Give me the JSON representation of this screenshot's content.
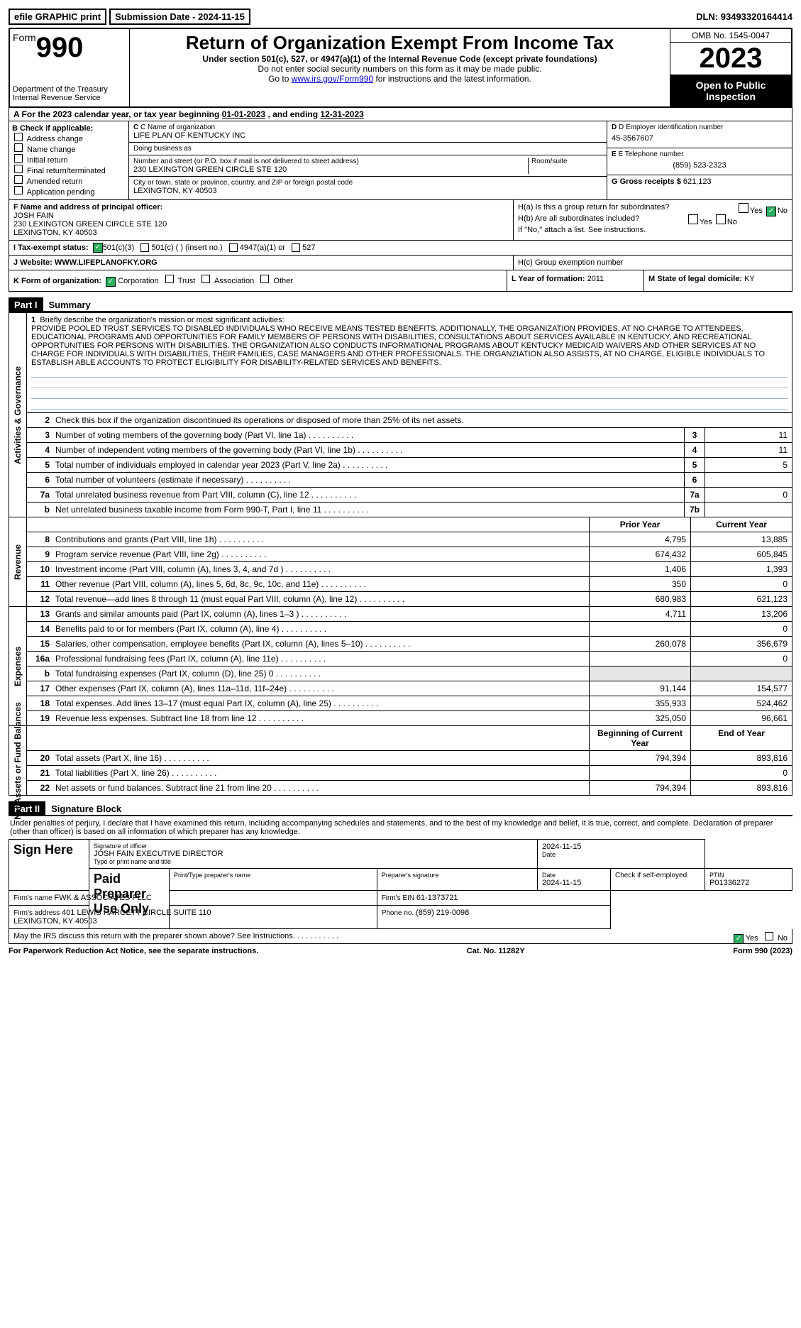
{
  "top": {
    "efile": "efile GRAPHIC print",
    "submission_label": "Submission Date - ",
    "submission_date": "2024-11-15",
    "dln_label": "DLN: ",
    "dln": "93493320164414"
  },
  "header": {
    "form_word": "Form",
    "form_number": "990",
    "dept": "Department of the Treasury\nInternal Revenue Service",
    "title": "Return of Organization Exempt From Income Tax",
    "sub1": "Under section 501(c), 527, or 4947(a)(1) of the Internal Revenue Code (except private foundations)",
    "sub2": "Do not enter social security numbers on this form as it may be made public.",
    "sub3_pre": "Go to ",
    "sub3_link": "www.irs.gov/Form990",
    "sub3_post": " for instructions and the latest information.",
    "omb": "OMB No. 1545-0047",
    "year": "2023",
    "open": "Open to Public Inspection"
  },
  "rowA": {
    "text_pre": "A For the 2023 calendar year, or tax year beginning ",
    "begin": "01-01-2023",
    "mid": "     , and ending ",
    "end": "12-31-2023"
  },
  "colB": {
    "head": "B Check if applicable:",
    "items": [
      "Address change",
      "Name change",
      "Initial return",
      "Final return/terminated",
      "Amended return",
      "Application pending"
    ]
  },
  "colC": {
    "c_label": "C Name of organization",
    "org": "LIFE PLAN OF KENTUCKY INC",
    "dba_label": "Doing business as",
    "dba": "",
    "street_label": "Number and street (or P.O. box if mail is not delivered to street address)",
    "street": "230 LEXINGTON GREEN CIRCLE STE 120",
    "room_label": "Room/suite",
    "city_label": "City or town, state or province, country, and ZIP or foreign postal code",
    "city": "LEXINGTON, KY  40503"
  },
  "colD": {
    "d_label": "D Employer identification number",
    "ein": "45-3567607",
    "e_label": "E Telephone number",
    "phone": "(859) 523-2323",
    "g_label": "G Gross receipts $ ",
    "gross": "621,123"
  },
  "rowF": {
    "label": "F  Name and address of principal officer:",
    "name": "JOSH FAIN",
    "addr1": "230 LEXINGTON GREEN CIRCLE STE 120",
    "addr2": "LEXINGTON, KY  40503"
  },
  "rowH": {
    "ha": "H(a)  Is this a group return for subordinates?",
    "hb": "H(b)  Are all subordinates included?",
    "hb_note": "If \"No,\" attach a list. See instructions.",
    "hc": "H(c)  Group exemption number  "
  },
  "rowI": {
    "label": "I  Tax-exempt status:",
    "opts": [
      "501(c)(3)",
      "501(c) (  ) (insert no.)",
      "4947(a)(1) or",
      "527"
    ]
  },
  "rowJ": {
    "label": "J  Website: ",
    "val": " WWW.LIFEPLANOFKY.ORG"
  },
  "rowK": {
    "k_label": "K Form of organization:",
    "opts": [
      "Corporation",
      "Trust",
      "Association",
      "Other"
    ],
    "l_label": "L Year of formation: ",
    "l_val": "2011",
    "m_label": "M State of legal domicile: ",
    "m_val": "KY"
  },
  "part1": {
    "hdr": "Part I",
    "title": "Summary"
  },
  "mission": {
    "num": "1",
    "lead": "Briefly describe the organization's mission or most significant activities:",
    "text": "PROVIDE POOLED TRUST SERVICES TO DISABLED INDIVIDUALS WHO RECEIVE MEANS TESTED BENEFITS. ADDITIONALLY, THE ORGANIZATION PROVIDES, AT NO CHARGE TO ATTENDEES, EDUCATIONAL PROGRAMS AND OPPORTUNITIES FOR FAMILY MEMBERS OF PERSONS WITH DISABILITIES, CONSULTATIONS ABOUT SERVICES AVAILABLE IN KENTUCKY, AND RECREATIONAL OPPORTUNITIES FOR PERSONS WITH DISABILITIES. THE ORGANIZATION ALSO CONDUCTS INFORMATIONAL PROGRAMS ABOUT KENTUCKY MEDICAID WAIVERS AND OTHER SERVICES AT NO CHARGE FOR INDIVIDUALS WITH DISABILITIES, THEIR FAMILIES, CASE MANAGERS AND OTHER PROFESSIONALS. THE ORGANZIATION ALSO ASSISTS, AT NO CHARGE, ELIGIBLE INDIVIDUALS TO ESTABLISH ABLE ACCOUNTS TO PROTECT ELIGIBILITY FOR DISABILITY-RELATED SERVICES AND BENEFITS."
  },
  "gov_lines": [
    {
      "n": "2",
      "d": "Check this box      if the organization discontinued its operations or disposed of more than 25% of its net assets.",
      "box": "",
      "val": ""
    },
    {
      "n": "3",
      "d": "Number of voting members of the governing body (Part VI, line 1a)",
      "box": "3",
      "val": "11"
    },
    {
      "n": "4",
      "d": "Number of independent voting members of the governing body (Part VI, line 1b)",
      "box": "4",
      "val": "11"
    },
    {
      "n": "5",
      "d": "Total number of individuals employed in calendar year 2023 (Part V, line 2a)",
      "box": "5",
      "val": "5"
    },
    {
      "n": "6",
      "d": "Total number of volunteers (estimate if necessary)",
      "box": "6",
      "val": ""
    },
    {
      "n": "7a",
      "d": "Total unrelated business revenue from Part VIII, column (C), line 12",
      "box": "7a",
      "val": "0"
    },
    {
      "n": "b",
      "d": "Net unrelated business taxable income from Form 990-T, Part I, line 11",
      "box": "7b",
      "val": ""
    }
  ],
  "rev_hdr": {
    "p": "Prior Year",
    "c": "Current Year"
  },
  "rev_lines": [
    {
      "n": "8",
      "d": "Contributions and grants (Part VIII, line 1h)",
      "p": "4,795",
      "c": "13,885"
    },
    {
      "n": "9",
      "d": "Program service revenue (Part VIII, line 2g)",
      "p": "674,432",
      "c": "605,845"
    },
    {
      "n": "10",
      "d": "Investment income (Part VIII, column (A), lines 3, 4, and 7d )",
      "p": "1,406",
      "c": "1,393"
    },
    {
      "n": "11",
      "d": "Other revenue (Part VIII, column (A), lines 5, 6d, 8c, 9c, 10c, and 11e)",
      "p": "350",
      "c": "0"
    },
    {
      "n": "12",
      "d": "Total revenue—add lines 8 through 11 (must equal Part VIII, column (A), line 12)",
      "p": "680,983",
      "c": "621,123"
    }
  ],
  "exp_lines": [
    {
      "n": "13",
      "d": "Grants and similar amounts paid (Part IX, column (A), lines 1–3 )",
      "p": "4,711",
      "c": "13,206"
    },
    {
      "n": "14",
      "d": "Benefits paid to or for members (Part IX, column (A), line 4)",
      "p": "",
      "c": "0"
    },
    {
      "n": "15",
      "d": "Salaries, other compensation, employee benefits (Part IX, column (A), lines 5–10)",
      "p": "260,078",
      "c": "356,679"
    },
    {
      "n": "16a",
      "d": "Professional fundraising fees (Part IX, column (A), line 11e)",
      "p": "",
      "c": "0"
    },
    {
      "n": "b",
      "d": "Total fundraising expenses (Part IX, column (D), line 25) 0",
      "p": "gray",
      "c": "gray"
    },
    {
      "n": "17",
      "d": "Other expenses (Part IX, column (A), lines 11a–11d, 11f–24e)",
      "p": "91,144",
      "c": "154,577"
    },
    {
      "n": "18",
      "d": "Total expenses. Add lines 13–17 (must equal Part IX, column (A), line 25)",
      "p": "355,933",
      "c": "524,462"
    },
    {
      "n": "19",
      "d": "Revenue less expenses. Subtract line 18 from line 12",
      "p": "325,050",
      "c": "96,661"
    }
  ],
  "net_hdr": {
    "p": "Beginning of Current Year",
    "c": "End of Year"
  },
  "net_lines": [
    {
      "n": "20",
      "d": "Total assets (Part X, line 16)",
      "p": "794,394",
      "c": "893,816"
    },
    {
      "n": "21",
      "d": "Total liabilities (Part X, line 26)",
      "p": "",
      "c": "0"
    },
    {
      "n": "22",
      "d": "Net assets or fund balances. Subtract line 21 from line 20",
      "p": "794,394",
      "c": "893,816"
    }
  ],
  "vlabels": {
    "gov": "Activities & Governance",
    "rev": "Revenue",
    "exp": "Expenses",
    "net": "Net Assets or Fund Balances"
  },
  "part2": {
    "hdr": "Part II",
    "title": "Signature Block"
  },
  "sig": {
    "decl": "Under penalties of perjury, I declare that I have examined this return, including accompanying schedules and statements, and to the best of my knowledge and belief, it is true, correct, and complete. Declaration of preparer (other than officer) is based on all information of which preparer has any knowledge.",
    "sign_here": "Sign Here",
    "sig_officer": "Signature of officer",
    "officer": "JOSH FAIN EXECUTIVE DIRECTOR",
    "type_name": "Type or print name and title",
    "date": "Date",
    "sig_date": "2024-11-15",
    "paid": "Paid Preparer Use Only",
    "prep_name_lbl": "Print/Type preparer's name",
    "prep_sig_lbl": "Preparer's signature",
    "prep_date": "2024-11-15",
    "check_se": "Check       if self-employed",
    "ptin_lbl": "PTIN",
    "ptin": "P01336272",
    "firm_name_lbl": "Firm's name   ",
    "firm_name": "FWK & ASSOCIATES PLLC",
    "firm_ein_lbl": "Firm's EIN  ",
    "firm_ein": "61-1373721",
    "firm_addr_lbl": "Firm's address ",
    "firm_addr": "401 LEWIS HARGETT CIRCLE SUITE 110\nLEXINGTON, KY  40503",
    "phone_lbl": "Phone no. ",
    "phone": "(859) 219-0098",
    "discuss": "May the IRS discuss this return with the preparer shown above? See Instructions.",
    "yes": "Yes",
    "no": "No"
  },
  "footer": {
    "l": "For Paperwork Reduction Act Notice, see the separate instructions.",
    "c": "Cat. No. 11282Y",
    "r": "Form 990 (2023)"
  }
}
